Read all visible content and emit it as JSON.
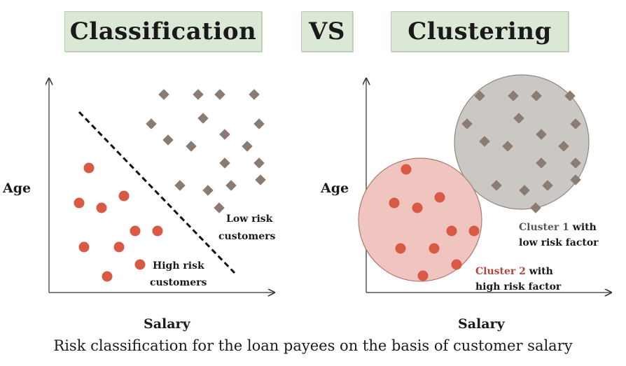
{
  "titles": {
    "left": "Classification",
    "vs": "VS",
    "right": "Clustering"
  },
  "axes": {
    "left": {
      "ylabel": "Age",
      "xlabel": "Salary"
    },
    "right": {
      "ylabel": "Age",
      "xlabel": "Salary"
    }
  },
  "classification": {
    "high_risk_label": [
      "High risk",
      "customers"
    ],
    "low_risk_label": [
      "Low risk",
      "customers"
    ]
  },
  "clustering": {
    "cluster1_label": [
      "Cluster 1 with",
      "low risk factor"
    ],
    "cluster1_label_parts": {
      "name": "Cluster 1",
      "rest": " with"
    },
    "cluster2_label_parts": {
      "name": "Cluster 2",
      "rest": " with"
    },
    "cluster2_label_line2": "high risk factor"
  },
  "caption": "Risk classification for the loan payees on the basis of customer salary",
  "colors": {
    "high_risk": "#d85a45",
    "low_risk": "#8a7c72",
    "cluster1_fill": "#cbc7c3",
    "cluster2_fill": "#f0c4bf",
    "title_bg": "#dce8d6"
  }
}
